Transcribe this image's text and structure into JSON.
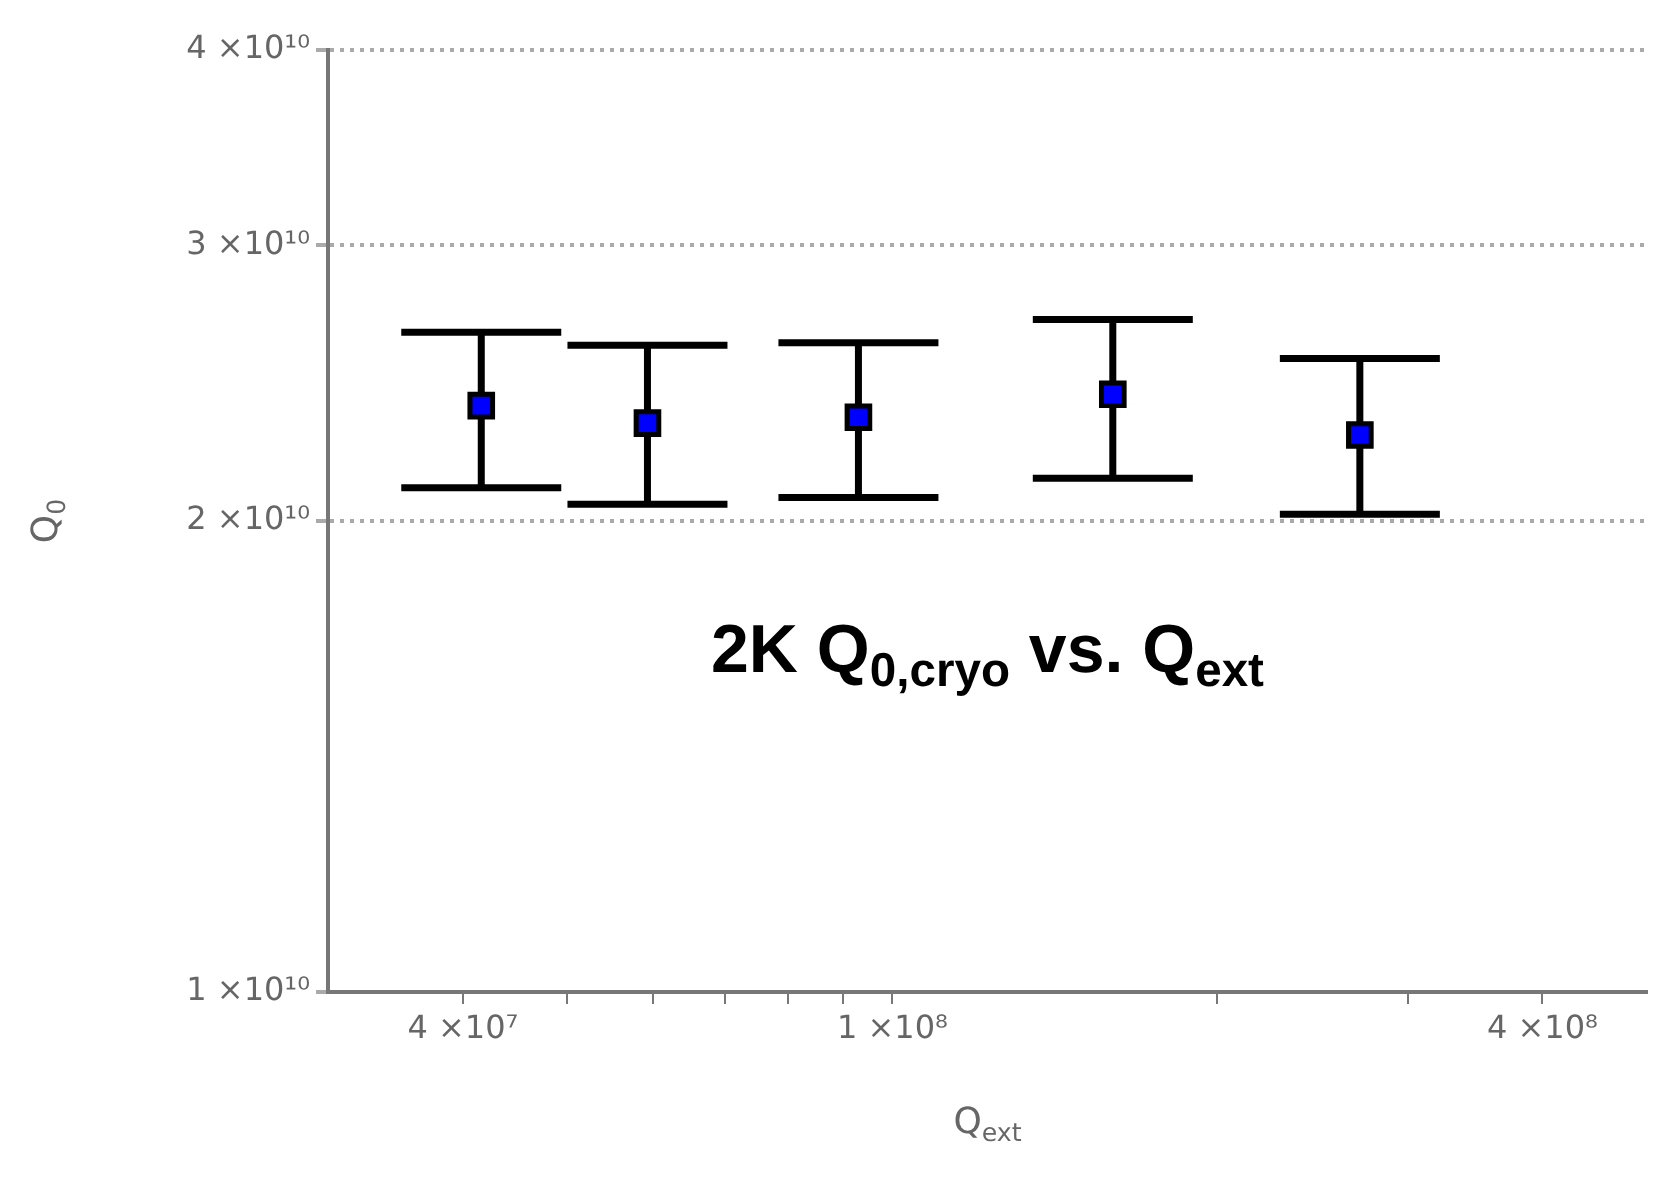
{
  "chart_data": {
    "type": "scatter",
    "xlabel": "Q$_{ext}$",
    "ylabel": "Q$_{0}$",
    "annotations": [
      "2K Q$_{0,cryo}$ vs. Q$_{ext}$"
    ],
    "x": [
      41600000.0,
      59300000.0,
      93000000.0,
      160000000.0,
      271000000.0
    ],
    "series": [
      {
        "color": "#0000ff",
        "values": [
          23700000000.0,
          23100000000.0,
          23300000000.0,
          24100000000.0,
          22700000000.0
        ],
        "errors": [
          [
            21000000000.0,
            26400000000.0
          ],
          [
            20500000000.0,
            25900000000.0
          ],
          [
            20700000000.0,
            26000000000.0
          ],
          [
            21300000000.0,
            26900000000.0
          ],
          [
            20200000000.0,
            25400000000.0
          ]
        ]
      }
    ],
    "log": "xy",
    "xlim": [
      30000000.0,
      500000000.0
    ],
    "ylim": [
      10000000000.0,
      40000000000.0
    ],
    "xticks": [
      {
        "value": 40000000.0,
        "label": "4 ×10⁷"
      },
      {
        "value": 50000000.0,
        "label": null
      },
      {
        "value": 60000000.0,
        "label": null
      },
      {
        "value": 70000000.0,
        "label": null
      },
      {
        "value": 80000000.0,
        "label": null
      },
      {
        "value": 90000000.0,
        "label": null
      },
      {
        "value": 100000000.0,
        "label": "1 ×10⁸"
      },
      {
        "value": 200000000.0,
        "label": null
      },
      {
        "value": 300000000.0,
        "label": null
      },
      {
        "value": 400000000.0,
        "label": "4 ×10⁸"
      }
    ],
    "yticks": [
      {
        "value": 10000000000.0,
        "label": "1 ×10¹⁰"
      },
      {
        "value": 20000000000.0,
        "label": "2 ×10¹⁰"
      },
      {
        "value": 30000000000.0,
        "label": "3 ×10¹⁰"
      },
      {
        "value": 40000000000.0,
        "label": "4 ×10¹⁰"
      }
    ],
    "grid": "y",
    "legend": false,
    "marker": "square"
  }
}
